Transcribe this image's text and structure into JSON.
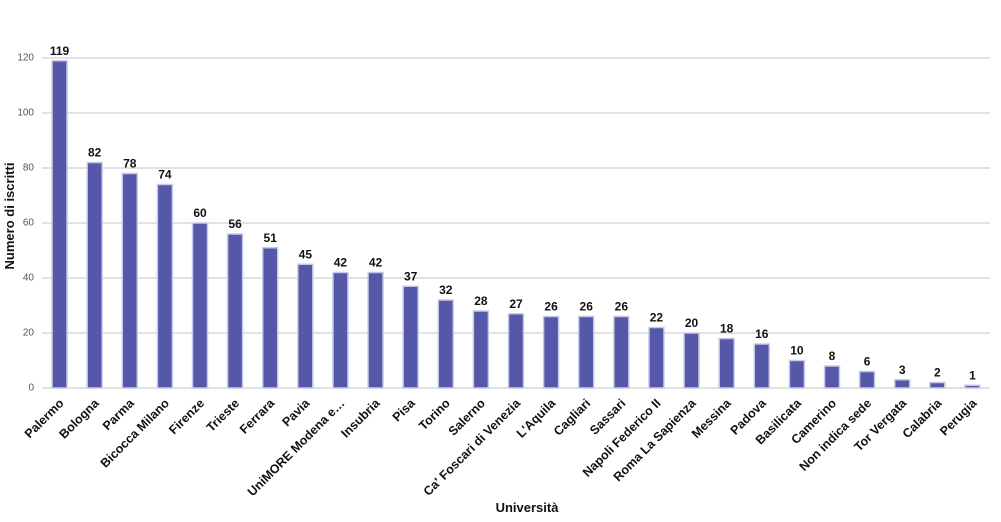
{
  "chart_data": {
    "type": "bar",
    "x_label": "Università",
    "y_label": "Numero di iscritti",
    "categories": [
      "Palermo",
      "Bologna",
      "Parma",
      "Bicocca Milano",
      "Firenze",
      "Trieste",
      "Ferrara",
      "Pavia",
      "UniMORE Modena e…",
      "Insubria",
      "Pisa",
      "Torino",
      "Salerno",
      "Ca' Foscari di Venezia",
      "L'Aquila",
      "Cagliari",
      "Sassari",
      "Napoli Federico II",
      "Roma La Sapienza",
      "Messina",
      "Padova",
      "Basilicata",
      "Camerino",
      "Non indica sede",
      "Tor Vergata",
      "Calabria",
      "Perugia"
    ],
    "values": [
      119,
      82,
      78,
      74,
      60,
      56,
      51,
      45,
      42,
      42,
      37,
      32,
      28,
      27,
      26,
      26,
      26,
      22,
      20,
      18,
      16,
      10,
      8,
      6,
      3,
      2,
      1
    ],
    "color": "#5558a8",
    "ylim": [
      0,
      120
    ],
    "yticks": [
      0,
      20,
      40,
      60,
      80,
      100,
      120
    ],
    "grid": true
  }
}
